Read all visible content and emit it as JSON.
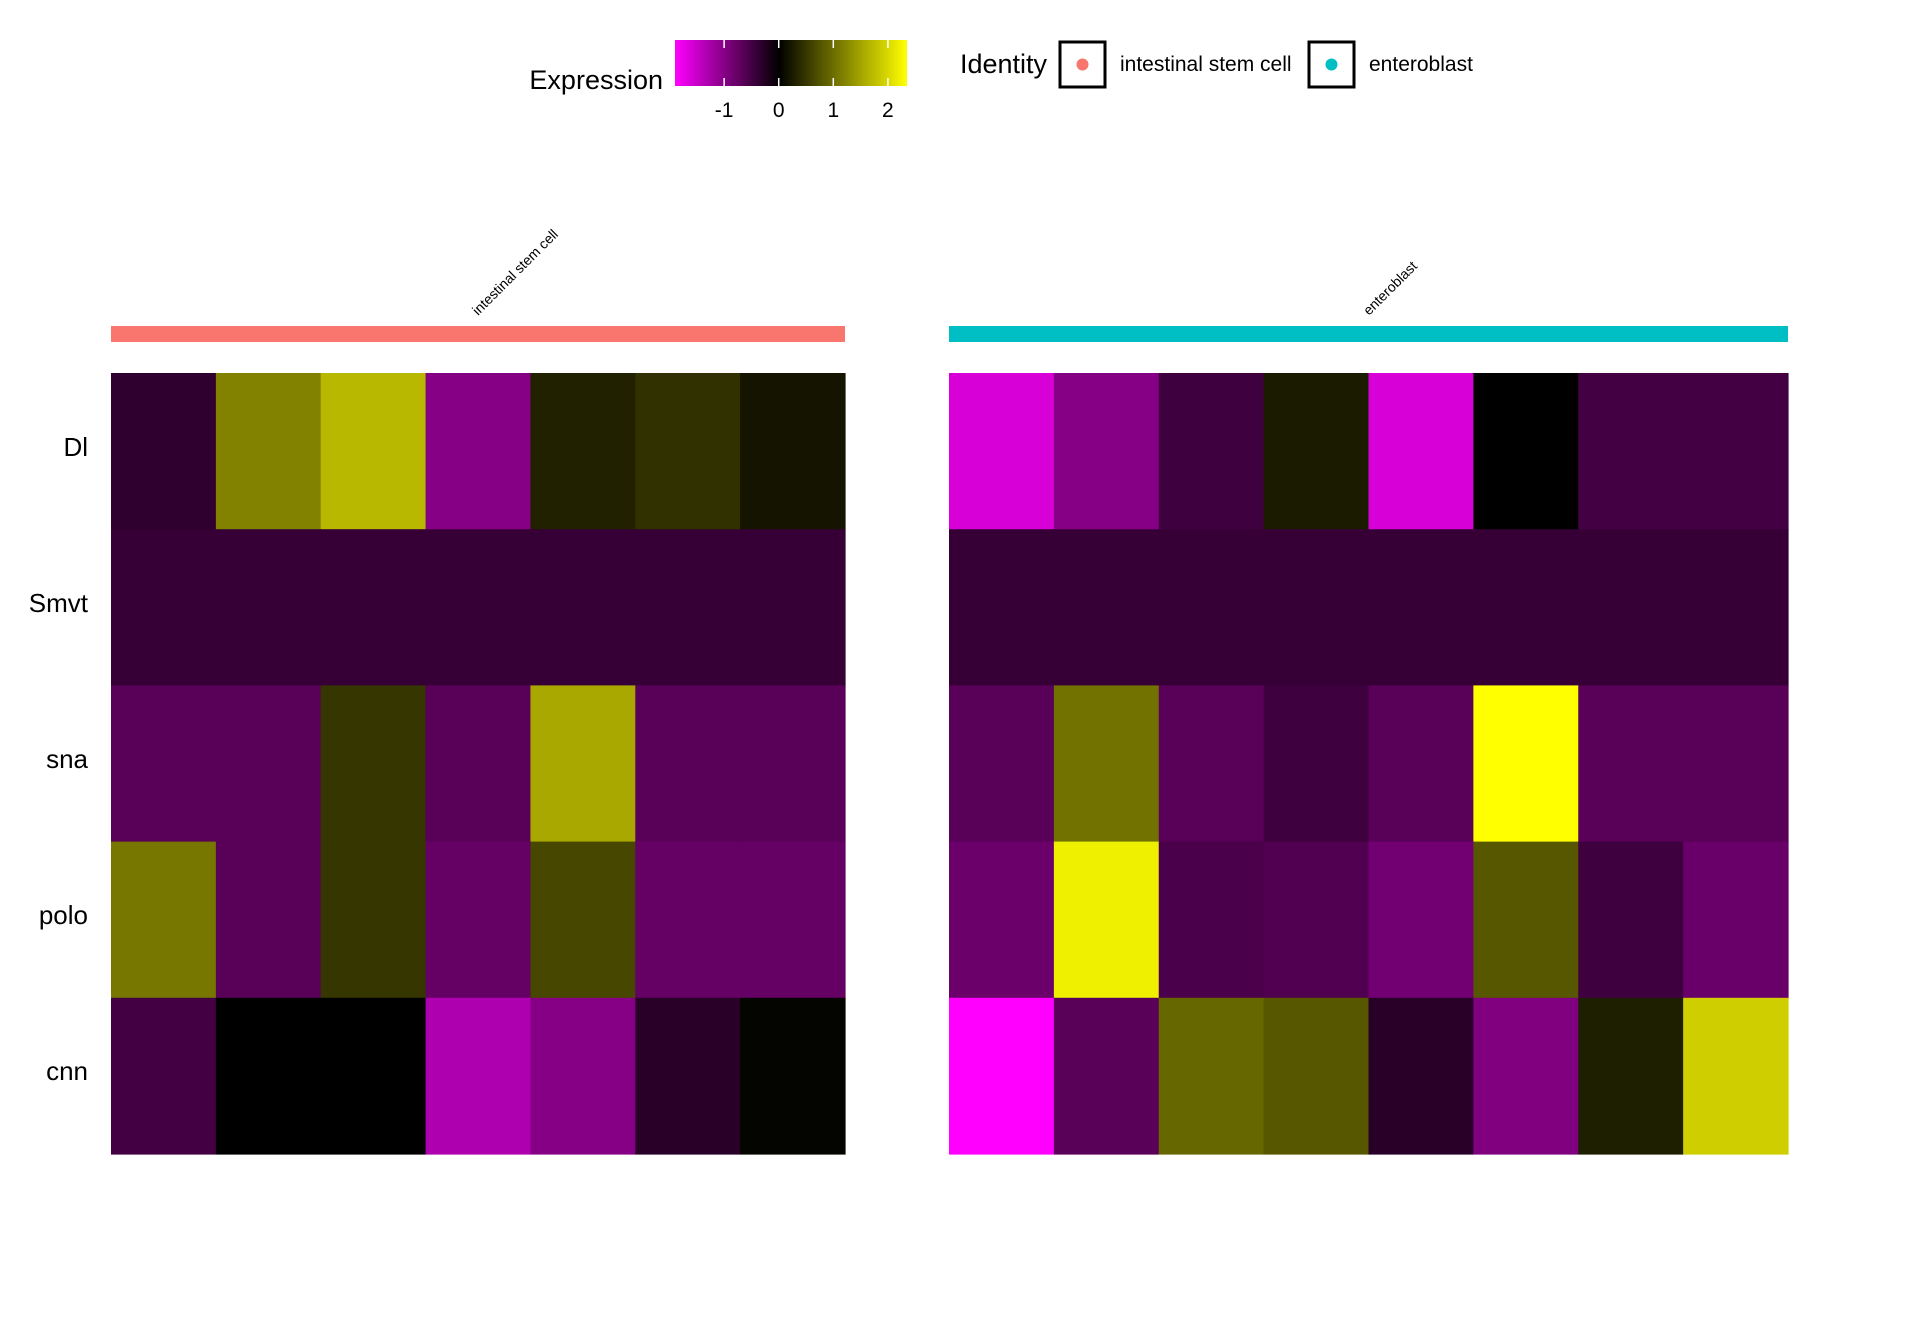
{
  "chart_data": {
    "type": "heatmap",
    "title": "",
    "genes": [
      "Dl",
      "Smvt",
      "sna",
      "polo",
      "cnn"
    ],
    "groups": [
      {
        "name": "intestinal stem cell",
        "color": "#F8766D",
        "values": [
          [
            -0.35,
            1.2,
            1.7,
            -1.0,
            0.3,
            0.45,
            0.18
          ],
          [
            -0.4,
            -0.4,
            -0.4,
            -0.4,
            -0.4,
            -0.4,
            -0.4
          ],
          [
            -0.66,
            -0.66,
            0.5,
            -0.66,
            1.55,
            -0.66,
            -0.66
          ],
          [
            1.1,
            -0.66,
            0.5,
            -0.75,
            0.65,
            -0.75,
            -0.75
          ],
          [
            -0.5,
            0.0,
            0.0,
            -1.3,
            -1.0,
            -0.3,
            0.05
          ]
        ]
      },
      {
        "name": "enteroblast",
        "color": "#00BFC4",
        "values": [
          [
            -1.6,
            -1.0,
            -0.46,
            0.25,
            -1.6,
            0.0,
            -0.5,
            -0.5
          ],
          [
            -0.4,
            -0.4,
            -0.4,
            -0.4,
            -0.4,
            -0.4,
            -0.4,
            -0.4
          ],
          [
            -0.66,
            1.05,
            -0.66,
            -0.46,
            -0.66,
            2.35,
            -0.66,
            -0.66
          ],
          [
            -0.8,
            2.2,
            -0.55,
            -0.6,
            -0.85,
            0.8,
            -0.46,
            -0.78
          ],
          [
            -1.9,
            -0.66,
            0.95,
            0.8,
            -0.3,
            -0.95,
            0.28,
            1.9
          ]
        ]
      }
    ],
    "color_scale": {
      "title": "Expression",
      "min": -1.9,
      "max": 2.35,
      "low_color": "#FF00FF",
      "mid_color": "#000000",
      "high_color": "#FFFF00",
      "ticks": [
        -1,
        0,
        1,
        2
      ],
      "tick_labels": [
        "-1",
        "0",
        "1",
        "2"
      ]
    },
    "identity_legend": {
      "title": "Identity",
      "items": [
        {
          "label": "intestinal stem cell",
          "color": "#F8766D"
        },
        {
          "label": "enteroblast",
          "color": "#00BFC4"
        }
      ]
    }
  }
}
